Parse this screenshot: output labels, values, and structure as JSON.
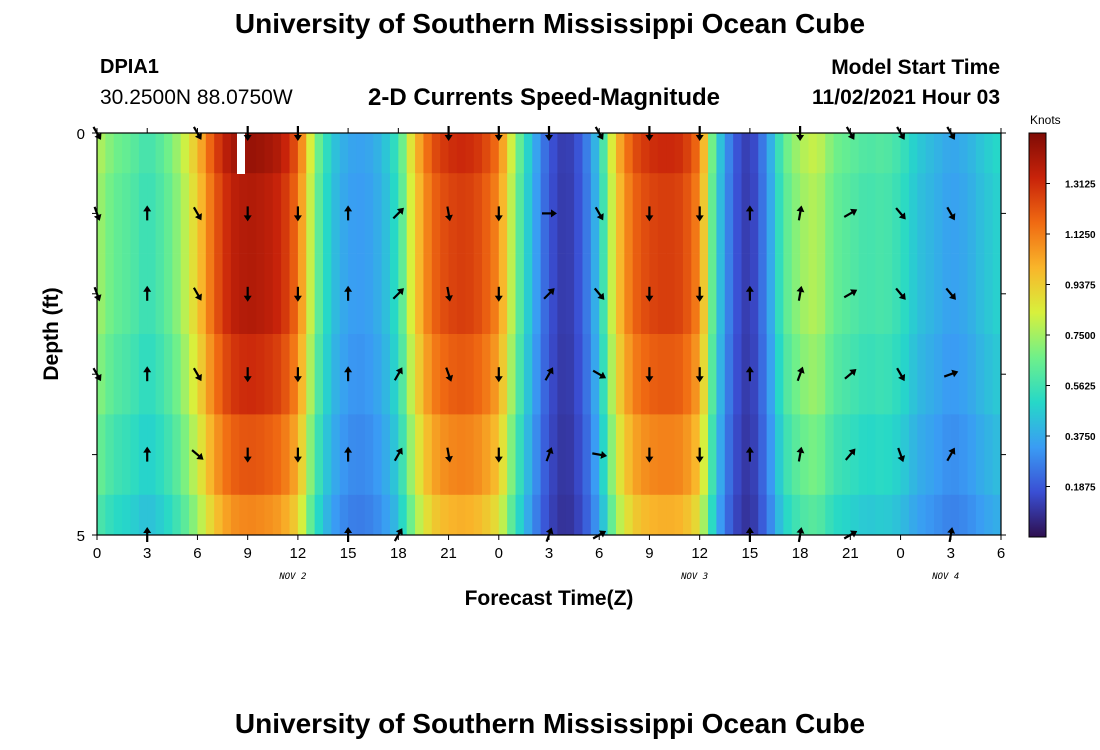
{
  "header": {
    "title": "University of Southern Mississippi Ocean Cube",
    "station_id": "DPIA1",
    "station_coords": "30.2500N  88.0750W",
    "plot_title": "2-D Currents Speed-Magnitude",
    "start_label": "Model Start Time",
    "start_value": "11/02/2021 Hour 03"
  },
  "footer": {
    "title": "University of Southern Mississippi Ocean Cube"
  },
  "chart_data": {
    "type": "heatmap",
    "title": "2-D Currents Speed-Magnitude",
    "xlabel": "Forecast Time(Z)",
    "ylabel": "Depth (ft)",
    "x_tick_labels": [
      "0",
      "3",
      "6",
      "9",
      "12",
      "15",
      "18",
      "21",
      "0",
      "3",
      "6",
      "9",
      "12",
      "15",
      "18",
      "21",
      "0",
      "3",
      "6"
    ],
    "date_labels": [
      {
        "label": "NOV 2",
        "tick_index": 3.9
      },
      {
        "label": "NOV 3",
        "tick_index": 11.9
      },
      {
        "label": "NOV 4",
        "tick_index": 16.9
      }
    ],
    "y_tick_labels": [
      {
        "depth": 0,
        "label": "0"
      },
      {
        "depth": 5,
        "label": "5"
      }
    ],
    "ylim": [
      0,
      5
    ],
    "xlim_hours": [
      0,
      54
    ],
    "colorbar": {
      "label": "Knots",
      "range": [
        0,
        1.5
      ],
      "ticks": [
        "1.3125",
        "1.1250",
        "0.9375",
        "0.7500",
        "0.5625",
        "0.3750",
        "0.1875"
      ],
      "tick_values": [
        1.3125,
        1.125,
        0.9375,
        0.75,
        0.5625,
        0.375,
        0.1875
      ],
      "colors": [
        "#2e0f4f",
        "#3a4fd4",
        "#3a9cf4",
        "#26d8c8",
        "#6ff08a",
        "#d8f03c",
        "#f9b52a",
        "#f06a12",
        "#c8230a",
        "#7f0b05"
      ]
    },
    "depth_rows": [
      0,
      1,
      2,
      3,
      4,
      5
    ],
    "speed_profile_hours": [
      [
        0,
        0.77
      ],
      [
        1,
        0.66
      ],
      [
        2,
        0.62
      ],
      [
        3,
        0.55
      ],
      [
        4,
        0.62
      ],
      [
        5,
        0.75
      ],
      [
        6,
        0.95
      ],
      [
        7,
        1.22
      ],
      [
        8,
        1.38
      ],
      [
        9,
        1.42
      ],
      [
        10,
        1.4
      ],
      [
        11,
        1.35
      ],
      [
        12,
        1.18
      ],
      [
        13,
        0.7
      ],
      [
        14,
        0.45
      ],
      [
        15,
        0.35
      ],
      [
        16,
        0.34
      ],
      [
        17,
        0.4
      ],
      [
        18,
        0.55
      ],
      [
        19,
        0.95
      ],
      [
        20,
        1.2
      ],
      [
        21,
        1.28
      ],
      [
        22,
        1.3
      ],
      [
        23,
        1.25
      ],
      [
        24,
        1.12
      ],
      [
        25,
        0.7
      ],
      [
        26,
        0.4
      ],
      [
        27,
        0.18
      ],
      [
        28,
        0.1
      ],
      [
        29,
        0.2
      ],
      [
        30,
        0.45
      ],
      [
        31,
        0.95
      ],
      [
        32,
        1.2
      ],
      [
        33,
        1.28
      ],
      [
        34,
        1.3
      ],
      [
        35,
        1.28
      ],
      [
        36,
        1.12
      ],
      [
        37,
        0.5
      ],
      [
        38,
        0.2
      ],
      [
        39,
        0.1
      ],
      [
        40,
        0.3
      ],
      [
        41,
        0.62
      ],
      [
        42,
        0.75
      ],
      [
        43,
        0.8
      ],
      [
        44,
        0.66
      ],
      [
        45,
        0.62
      ],
      [
        46,
        0.58
      ],
      [
        47,
        0.6
      ],
      [
        48,
        0.55
      ],
      [
        49,
        0.45
      ],
      [
        50,
        0.4
      ],
      [
        51,
        0.35
      ],
      [
        52,
        0.38
      ],
      [
        53,
        0.45
      ],
      [
        54,
        0.5
      ]
    ],
    "depth_factors": [
      1.02,
      0.98,
      0.98,
      0.93,
      0.86,
      0.78
    ],
    "arrow_hours": [
      0,
      3,
      6,
      9,
      12,
      15,
      18,
      21,
      24,
      27,
      30,
      33,
      36,
      39,
      42,
      45,
      48,
      51
    ],
    "arrow_directions_deg": [
      [
        150,
        null,
        150,
        180,
        180,
        null,
        null,
        180,
        180,
        180,
        150,
        180,
        180,
        null,
        180,
        150,
        150,
        150
      ],
      [
        160,
        0,
        150,
        180,
        180,
        0,
        45,
        170,
        180,
        90,
        150,
        180,
        180,
        0,
        10,
        60,
        140,
        150
      ],
      [
        160,
        0,
        150,
        180,
        180,
        0,
        45,
        170,
        180,
        45,
        140,
        180,
        180,
        0,
        10,
        60,
        140,
        140
      ],
      [
        150,
        0,
        150,
        180,
        180,
        0,
        30,
        160,
        180,
        30,
        120,
        180,
        180,
        0,
        20,
        50,
        150,
        70
      ],
      [
        null,
        0,
        130,
        180,
        180,
        0,
        30,
        170,
        180,
        20,
        100,
        180,
        180,
        0,
        10,
        40,
        160,
        30
      ],
      [
        null,
        0,
        null,
        null,
        null,
        0,
        30,
        null,
        null,
        20,
        60,
        null,
        null,
        0,
        10,
        60,
        null,
        10
      ]
    ]
  }
}
